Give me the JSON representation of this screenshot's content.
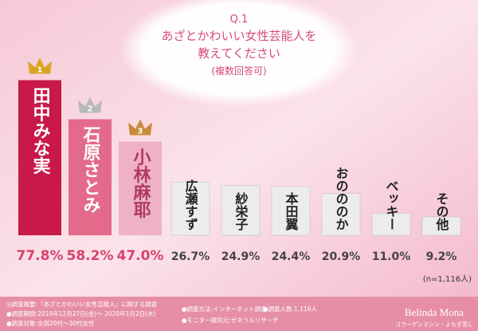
{
  "chart_data": {
    "type": "bar",
    "question": "Q.1",
    "title": [
      "あざとかわいい女性芸能人を",
      "教えてください"
    ],
    "subtitle": "(複数回答可)",
    "categories": [
      "田中みな実",
      "石原さとみ",
      "小林麻耶",
      "広瀬すず",
      "紗栄子",
      "本田翼",
      "おのののか",
      "ベッキー",
      "その他"
    ],
    "values": [
      77.8,
      58.2,
      47.0,
      26.7,
      24.9,
      24.4,
      20.9,
      11.0,
      9.2
    ],
    "value_labels": [
      "77.8%",
      "58.2%",
      "47.0%",
      "26.7%",
      "24.9%",
      "24.4%",
      "20.9%",
      "11.0%",
      "9.2%"
    ],
    "colors": [
      "#c8194a",
      "#e46a8c",
      "#eeb2c4",
      "#ececec",
      "#ececec",
      "#ececec",
      "#ececec",
      "#ececec",
      "#ececec"
    ],
    "rank_labels": [
      "1",
      "2",
      "3"
    ],
    "note": "(n=1,116人)",
    "footer": [
      "◎調査概要:「あざとかわいい女性芸能人」に関する調査",
      "●調査期間:2019年12月27日(金)〜 2020年1月2日(木)",
      "●調査対象:全国20代〜30代女性",
      "●調査方法:インターネット調査",
      "●調査人数:1,116人",
      "●モニター提供元:ゼネラルリサーチ"
    ],
    "brand": "Belinda Mona",
    "brand_sub": "コラーゲンマシン・よもぎ蒸し"
  }
}
